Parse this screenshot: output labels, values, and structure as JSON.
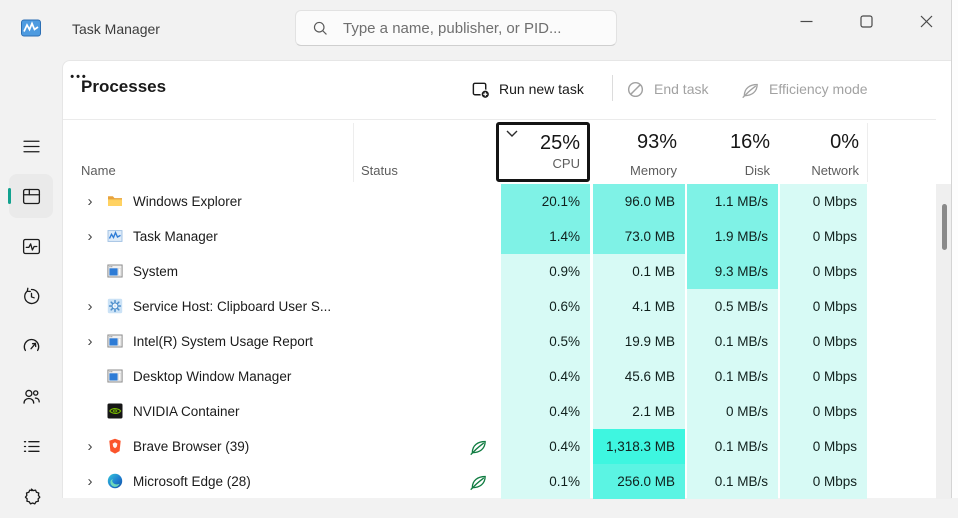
{
  "window": {
    "title": "Task Manager"
  },
  "search": {
    "placeholder": "Type a name, publisher, or PID..."
  },
  "sidebar": {
    "items": [
      {
        "icon": "hamburger-menu-icon",
        "selected": false
      },
      {
        "icon": "processes-icon",
        "selected": true
      },
      {
        "icon": "performance-icon",
        "selected": false
      },
      {
        "icon": "app-history-icon",
        "selected": false
      },
      {
        "icon": "startup-apps-icon",
        "selected": false
      },
      {
        "icon": "users-icon",
        "selected": false
      },
      {
        "icon": "details-icon",
        "selected": false
      },
      {
        "icon": "services-icon",
        "selected": false
      }
    ]
  },
  "toolbar": {
    "page_title": "Processes",
    "run_new_task": "Run new task",
    "end_task": "End task",
    "efficiency_mode": "Efficiency mode",
    "more": "•••"
  },
  "table": {
    "header": {
      "name": "Name",
      "status": "Status",
      "sorted_column": "cpu",
      "cpu_value": "25%",
      "cpu_label": "CPU",
      "memory_value": "93%",
      "memory_label": "Memory",
      "disk_value": "16%",
      "disk_label": "Disk",
      "network_value": "0%",
      "network_label": "Network"
    },
    "rows": [
      {
        "name": "Windows Explorer",
        "icon": "folder-icon",
        "expandable": true,
        "status_leaf": false,
        "cpu": "20.1%",
        "memory": "96.0 MB",
        "disk": "1.1 MB/s",
        "network": "0 Mbps",
        "heat": {
          "cpu": "mid",
          "memory": "mid",
          "disk": "mid",
          "network": "light"
        }
      },
      {
        "name": "Task Manager",
        "icon": "task-manager-icon",
        "expandable": true,
        "status_leaf": false,
        "cpu": "1.4%",
        "memory": "73.0 MB",
        "disk": "1.9 MB/s",
        "network": "0 Mbps",
        "heat": {
          "cpu": "mid",
          "memory": "mid",
          "disk": "mid",
          "network": "light"
        }
      },
      {
        "name": "System",
        "icon": "app-window-icon",
        "expandable": false,
        "status_leaf": false,
        "cpu": "0.9%",
        "memory": "0.1 MB",
        "disk": "9.3 MB/s",
        "network": "0 Mbps",
        "heat": {
          "cpu": "light",
          "memory": "light",
          "disk": "mid",
          "network": "light"
        }
      },
      {
        "name": "Service Host: Clipboard User S...",
        "icon": "gear-icon",
        "expandable": true,
        "status_leaf": false,
        "cpu": "0.6%",
        "memory": "4.1 MB",
        "disk": "0.5 MB/s",
        "network": "0 Mbps",
        "heat": {
          "cpu": "light",
          "memory": "light",
          "disk": "light",
          "network": "light"
        }
      },
      {
        "name": "Intel(R) System Usage Report",
        "icon": "app-window-icon",
        "expandable": true,
        "status_leaf": false,
        "cpu": "0.5%",
        "memory": "19.9 MB",
        "disk": "0.1 MB/s",
        "network": "0 Mbps",
        "heat": {
          "cpu": "light",
          "memory": "light",
          "disk": "light",
          "network": "light"
        }
      },
      {
        "name": "Desktop Window Manager",
        "icon": "app-window-icon",
        "expandable": false,
        "status_leaf": false,
        "cpu": "0.4%",
        "memory": "45.6 MB",
        "disk": "0.1 MB/s",
        "network": "0 Mbps",
        "heat": {
          "cpu": "light",
          "memory": "light",
          "disk": "light",
          "network": "light"
        }
      },
      {
        "name": "NVIDIA Container",
        "icon": "nvidia-icon",
        "expandable": false,
        "status_leaf": false,
        "cpu": "0.4%",
        "memory": "2.1 MB",
        "disk": "0 MB/s",
        "network": "0 Mbps",
        "heat": {
          "cpu": "light",
          "memory": "light",
          "disk": "light",
          "network": "light"
        }
      },
      {
        "name": "Brave Browser (39)",
        "icon": "brave-icon",
        "expandable": true,
        "status_leaf": true,
        "cpu": "0.4%",
        "memory": "1,318.3 MB",
        "disk": "0.1 MB/s",
        "network": "0 Mbps",
        "heat": {
          "cpu": "light",
          "memory": "bright",
          "disk": "light",
          "network": "light"
        }
      },
      {
        "name": "Microsoft Edge (28)",
        "icon": "edge-icon",
        "expandable": true,
        "status_leaf": true,
        "cpu": "0.1%",
        "memory": "256.0 MB",
        "disk": "0.1 MB/s",
        "network": "0 Mbps",
        "heat": {
          "cpu": "light",
          "memory": "medbright",
          "disk": "light",
          "network": "light"
        }
      }
    ]
  },
  "colors": {
    "accent_pill": "#12a28f",
    "heat_light": "#d7faf5",
    "heat_mid": "#7ff2e6",
    "heat_medbright": "#5bf4e3",
    "heat_bright": "#3ef6e0",
    "leaf_green": "#107C41"
  }
}
